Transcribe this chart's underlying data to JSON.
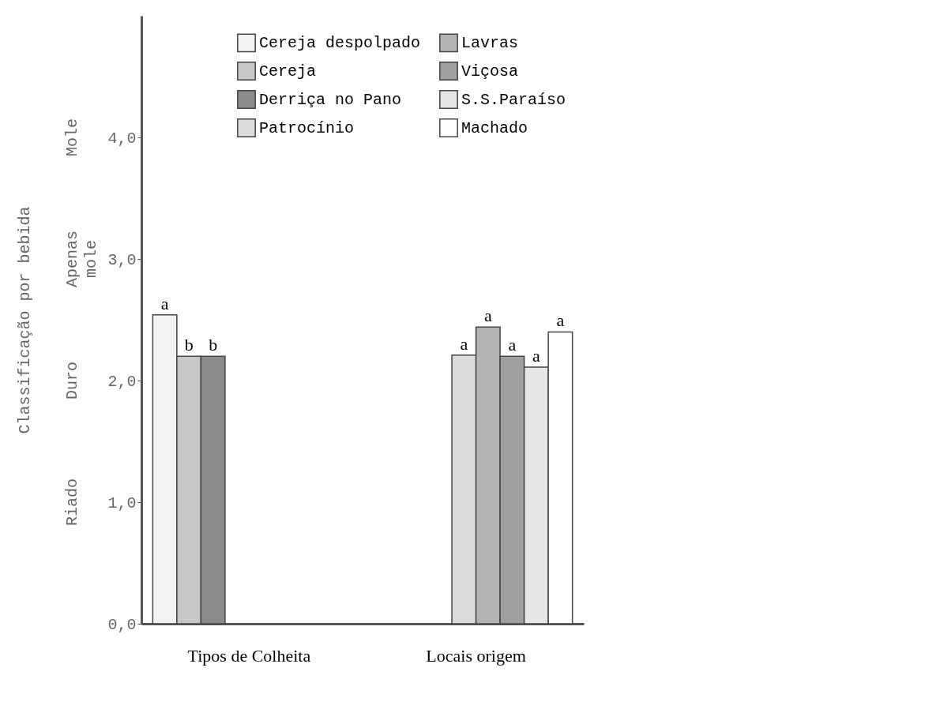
{
  "chart_data": {
    "type": "bar",
    "ylabel": "Classificação por bebida",
    "categories": [
      "Tipos de Colheita",
      "Locais origem"
    ],
    "series": [
      {
        "name": "Cereja despolpado",
        "color": "#f2f2f2",
        "values": [
          2.54,
          null
        ],
        "value_labels": [
          "a",
          null
        ]
      },
      {
        "name": "Cereja",
        "color": "#c8c8c8",
        "values": [
          2.2,
          null
        ],
        "value_labels": [
          "b",
          null
        ]
      },
      {
        "name": "Derriça no Pano",
        "color": "#8c8c8c",
        "values": [
          2.2,
          null
        ],
        "value_labels": [
          "b",
          null
        ]
      },
      {
        "name": "Patrocínio",
        "color": "#dcdcdc",
        "values": [
          null,
          2.21
        ],
        "value_labels": [
          null,
          "a"
        ]
      },
      {
        "name": "Lavras",
        "color": "#b4b4b4",
        "values": [
          null,
          2.44
        ],
        "value_labels": [
          null,
          "a"
        ]
      },
      {
        "name": "Viçosa",
        "color": "#a0a0a0",
        "values": [
          null,
          2.2
        ],
        "value_labels": [
          null,
          "a"
        ]
      },
      {
        "name": "S.S.Paraíso",
        "color": "#e6e6e6",
        "values": [
          null,
          2.11
        ],
        "value_labels": [
          null,
          "a"
        ]
      },
      {
        "name": "Machado",
        "color": "#ffffff",
        "values": [
          null,
          2.4
        ],
        "value_labels": [
          null,
          "a"
        ]
      }
    ],
    "ylim": [
      0,
      5
    ],
    "yticks": [
      {
        "value": 0,
        "label": "0,0"
      },
      {
        "value": 1,
        "label": "1,0"
      },
      {
        "value": 2,
        "label": "2,0"
      },
      {
        "value": 3,
        "label": "3,0"
      },
      {
        "value": 4,
        "label": "4,0"
      }
    ],
    "annotations": [
      "Riado",
      "Duro",
      "Apenas mole",
      "Mole"
    ],
    "grid": false,
    "legend": "top right"
  }
}
